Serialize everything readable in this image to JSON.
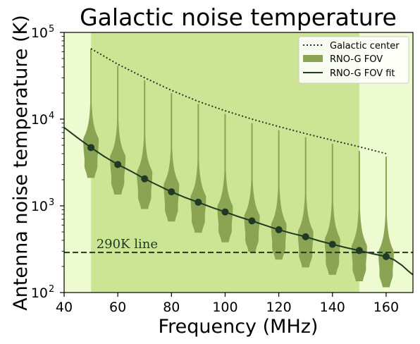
{
  "chart_data": {
    "type": "violin",
    "title": "Galactic noise temperature",
    "xlabel": "Frequency (MHz)",
    "ylabel": "Antenna noise temperature (K)",
    "xlim": [
      40,
      170
    ],
    "ylim": [
      100,
      100000
    ],
    "yscale": "log",
    "xticks": [
      40,
      60,
      80,
      100,
      120,
      140,
      160
    ],
    "yticks": [
      {
        "value": 100,
        "base": "10",
        "exp": "2"
      },
      {
        "value": 1000,
        "base": "10",
        "exp": "3"
      },
      {
        "value": 10000,
        "base": "10",
        "exp": "4"
      },
      {
        "value": 100000,
        "base": "10",
        "exp": "5"
      }
    ],
    "background": {
      "outer_color": "#eefbd0",
      "band_color": "#cce594",
      "band_range": [
        50,
        150
      ]
    },
    "colors": {
      "violin": "#8aa454",
      "fit": "#1f3a24",
      "center": "#1f3a24",
      "ref_line": "#1f3a24"
    },
    "legend": {
      "position": "top-right",
      "entries": [
        {
          "label": "Galactic center",
          "style": "dotted-line"
        },
        {
          "label": "RNO-G FOV",
          "style": "patch"
        },
        {
          "label": "RNO-G FOV fit",
          "style": "solid-line"
        }
      ]
    },
    "galactic_center": {
      "name": "Galactic center",
      "x": [
        50,
        60,
        70,
        80,
        90,
        100,
        110,
        120,
        130,
        140,
        150,
        160
      ],
      "y": [
        65000,
        43000,
        30000,
        21500,
        16000,
        12500,
        10000,
        8200,
        6800,
        5700,
        4800,
        4000
      ]
    },
    "violins": {
      "name": "RNO-G FOV",
      "x": [
        50,
        60,
        70,
        80,
        90,
        100,
        110,
        120,
        130,
        140,
        150,
        160
      ],
      "median": [
        4700,
        3000,
        2050,
        1450,
        1100,
        850,
        670,
        530,
        440,
        360,
        305,
        260
      ],
      "min": [
        2100,
        1350,
        920,
        660,
        490,
        380,
        295,
        240,
        195,
        160,
        135,
        115
      ],
      "max": [
        65000,
        41000,
        28000,
        20000,
        15000,
        11500,
        9000,
        7500,
        6200,
        5200,
        4300,
        3700
      ],
      "peak": [
        6000,
        3800,
        2500,
        1800,
        1300,
        1000,
        780,
        620,
        510,
        420,
        350,
        300
      ]
    },
    "fit": {
      "name": "RNO-G FOV fit",
      "x": [
        40,
        45,
        50,
        55,
        60,
        65,
        70,
        75,
        80,
        85,
        90,
        95,
        100,
        105,
        110,
        115,
        120,
        125,
        130,
        135,
        140,
        145,
        150,
        155,
        160,
        163,
        166,
        168,
        170
      ],
      "y": [
        8000,
        6100,
        4700,
        3700,
        3000,
        2500,
        2050,
        1720,
        1450,
        1250,
        1100,
        960,
        850,
        750,
        670,
        595,
        530,
        480,
        440,
        395,
        360,
        330,
        305,
        280,
        260,
        238,
        205,
        180,
        160
      ]
    },
    "reference_line": {
      "value": 290,
      "label": "290K line",
      "label_x": 52
    }
  }
}
